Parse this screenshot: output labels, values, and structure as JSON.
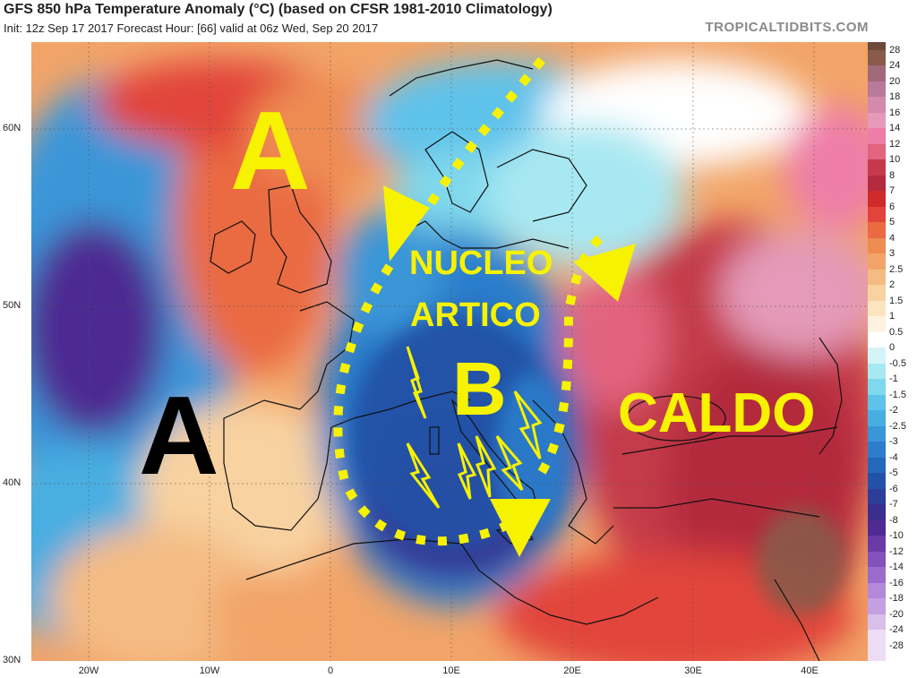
{
  "header": {
    "title": "GFS 850 hPa Temperature Anomaly (°C) (based on CFSR 1981-2010 Climatology)",
    "subtitle": "Init: 12z Sep 17 2017   Forecast Hour: [66]   valid at 06z Wed, Sep 20 2017",
    "brand": "TROPICALTIDBITS.COM"
  },
  "map": {
    "lat_labels": [
      "60N",
      "50N",
      "40N",
      "30N"
    ],
    "lon_labels": [
      "20W",
      "10W",
      "0",
      "10E",
      "20E",
      "30E",
      "40E"
    ]
  },
  "legend": {
    "labels": [
      "28",
      "24",
      "20",
      "18",
      "16",
      "14",
      "12",
      "10",
      "8",
      "7",
      "6",
      "5",
      "4",
      "3",
      "2.5",
      "2",
      "1.5",
      "1",
      "0.5",
      "0",
      "-0.5",
      "-1",
      "-1.5",
      "-2",
      "-2.5",
      "-3",
      "-4",
      "-5",
      "-6",
      "-7",
      "-8",
      "-10",
      "-12",
      "-14",
      "-16",
      "-18",
      "-20",
      "-24",
      "-28"
    ],
    "colors": [
      "#6b4a3a",
      "#8a5a4a",
      "#a06a78",
      "#b87a98",
      "#d48aaa",
      "#e49ab8",
      "#ee7ea8",
      "#e2647e",
      "#c43a4a",
      "#b42a3e",
      "#d02a2a",
      "#e2443a",
      "#ea6a42",
      "#ee8c52",
      "#f2a468",
      "#f4bc84",
      "#f8d2a0",
      "#fce4c0",
      "#fff2e0",
      "#ffffff",
      "#d4f4f8",
      "#a8e8f2",
      "#80d8ec",
      "#5ec2ea",
      "#48aee2",
      "#3a96d8",
      "#2c7ecc",
      "#2368bc",
      "#2252a8",
      "#2c3e9a",
      "#3a2e8e",
      "#4e2a92",
      "#6a3aa6",
      "#8452bc",
      "#9c6ccc",
      "#b488da",
      "#c4a0e2",
      "#d8c0ea",
      "#ecdcf4"
    ]
  },
  "annotations": {
    "anticyclone_north": "A",
    "anticyclone_south": "A",
    "low": "B",
    "core_line1": "NUCLEO",
    "core_line2": "ARTICO",
    "warm": "CALDO"
  },
  "colors": {
    "annotation_yellow": "#f7f200",
    "annotation_black": "#000000"
  }
}
